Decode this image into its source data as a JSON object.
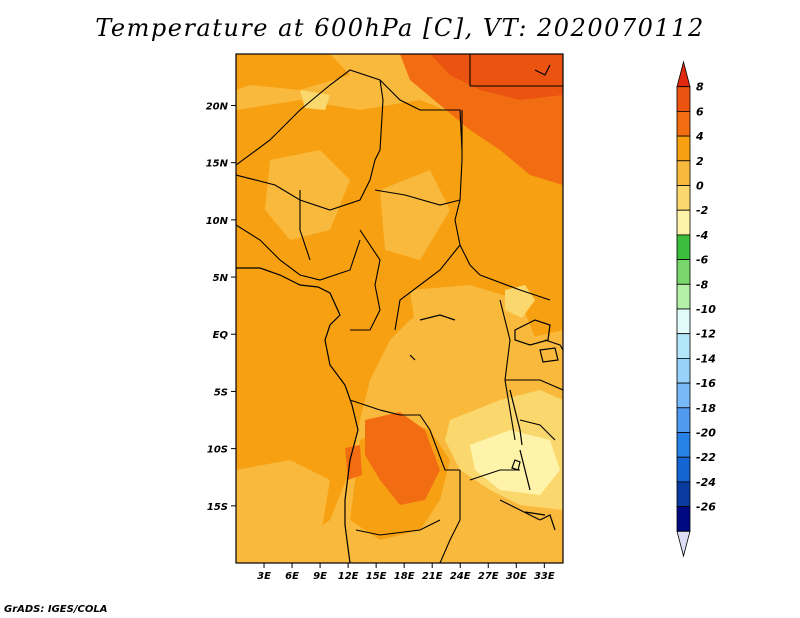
{
  "title": "Temperature at 600hPa [C], VT: 2020070112",
  "credit": "GrADS: IGES/COLA",
  "chart_data": {
    "type": "heatmap",
    "variable": "Temperature",
    "level": "600hPa",
    "units": "C",
    "valid_time": "2020070112",
    "lon_range": [
      0,
      35
    ],
    "lat_range": [
      -20,
      24.5
    ],
    "x_ticks": [
      "3E",
      "6E",
      "9E",
      "12E",
      "15E",
      "18E",
      "21E",
      "24E",
      "27E",
      "30E",
      "33E"
    ],
    "x_tick_values": [
      3,
      6,
      9,
      12,
      15,
      18,
      21,
      24,
      27,
      30,
      33
    ],
    "y_ticks": [
      "20N",
      "15N",
      "10N",
      "5N",
      "EQ",
      "5S",
      "10S",
      "15S"
    ],
    "y_tick_values": [
      20,
      15,
      10,
      5,
      0,
      -5,
      -10,
      -15
    ],
    "colorbar": {
      "labels": [
        "8",
        "6",
        "4",
        "2",
        "0",
        "-2",
        "-4",
        "-6",
        "-8",
        "-10",
        "-12",
        "-14",
        "-16",
        "-18",
        "-20",
        "-22",
        "-24",
        "-26"
      ],
      "colors": [
        "#e02a10",
        "#eb5410",
        "#f26d12",
        "#f7a012",
        "#f9b93c",
        "#fbd86d",
        "#fff3aa",
        "#3cbe3c",
        "#78d66c",
        "#b4f0a8",
        "#e1fafa",
        "#b4e6fa",
        "#96d2fa",
        "#78b9fa",
        "#509bf0",
        "#2882e6",
        "#1464d2",
        "#0a3ca0",
        "#000a80",
        "#ddddf5"
      ]
    },
    "field_regions": [
      {
        "name": "background_0_2",
        "level_min": 0,
        "level_max": 2
      },
      {
        "name": "core_2_4",
        "level_min": 2,
        "level_max": 4
      },
      {
        "name": "northeast_4_6",
        "level_min": 4,
        "level_max": 6
      },
      {
        "name": "northeast_peak_6_8",
        "level_min": 6,
        "level_max": 8
      },
      {
        "name": "angola_4_6",
        "level_min": 4,
        "level_max": 6
      },
      {
        "name": "east_africa_-2_0",
        "level_min": -2,
        "level_max": 0
      },
      {
        "name": "lake_region_-4_-2",
        "level_min": -4,
        "level_max": -2
      }
    ]
  }
}
